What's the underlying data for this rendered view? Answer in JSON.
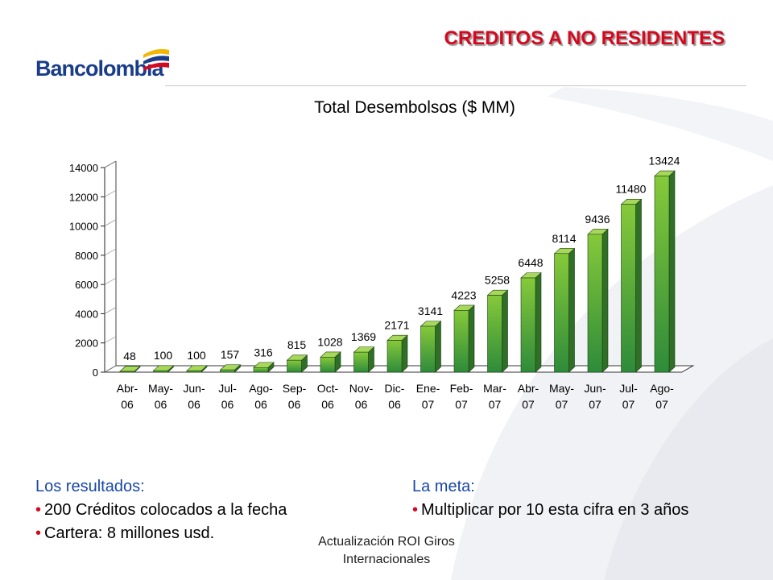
{
  "slide": {
    "title": "CREDITOS A NO RESIDENTES",
    "logo_text": "Bancolombia",
    "footer_line1": "Actualización ROI Giros",
    "footer_line2": "Internacionales"
  },
  "results": {
    "heading": "Los resultados:",
    "bullet_char": "•",
    "items": [
      "200 Créditos colocados a la fecha",
      "Cartera: 8 millones usd."
    ]
  },
  "goal": {
    "heading": "La meta:",
    "bullet_char": "•",
    "items": [
      "Multiplicar por 10 esta cifra en 3 años"
    ]
  },
  "colors": {
    "title_red": "#d6081e",
    "logo_blue": "#1a3d8a",
    "heading_blue": "#1a47a8",
    "bar_top": "#86c93a",
    "bar_bottom": "#2e8b3a",
    "bar_side": "#2f6f26"
  },
  "chart_data": {
    "type": "bar",
    "title": "Total Desembolsos ($ MM)",
    "categories": [
      [
        "Abr-",
        "06"
      ],
      [
        "May-",
        "06"
      ],
      [
        "Jun-",
        "06"
      ],
      [
        "Jul-",
        "06"
      ],
      [
        "Ago-",
        "06"
      ],
      [
        "Sep-",
        "06"
      ],
      [
        "Oct-",
        "06"
      ],
      [
        "Nov-",
        "06"
      ],
      [
        "Dic-",
        "06"
      ],
      [
        "Ene-",
        "07"
      ],
      [
        "Feb-",
        "07"
      ],
      [
        "Mar-",
        "07"
      ],
      [
        "Abr-",
        "07"
      ],
      [
        "May-",
        "07"
      ],
      [
        "Jun-",
        "07"
      ],
      [
        "Jul-",
        "07"
      ],
      [
        "Ago-",
        "07"
      ]
    ],
    "values": [
      48,
      100,
      100,
      157,
      316,
      815,
      1028,
      1369,
      2171,
      3141,
      4223,
      5258,
      6448,
      8114,
      9436,
      11480,
      13424
    ],
    "ylim": [
      0,
      14000
    ],
    "yticks": [
      0,
      2000,
      4000,
      6000,
      8000,
      10000,
      12000,
      14000
    ],
    "grid": false,
    "legend": false,
    "style": "3d-bar"
  }
}
